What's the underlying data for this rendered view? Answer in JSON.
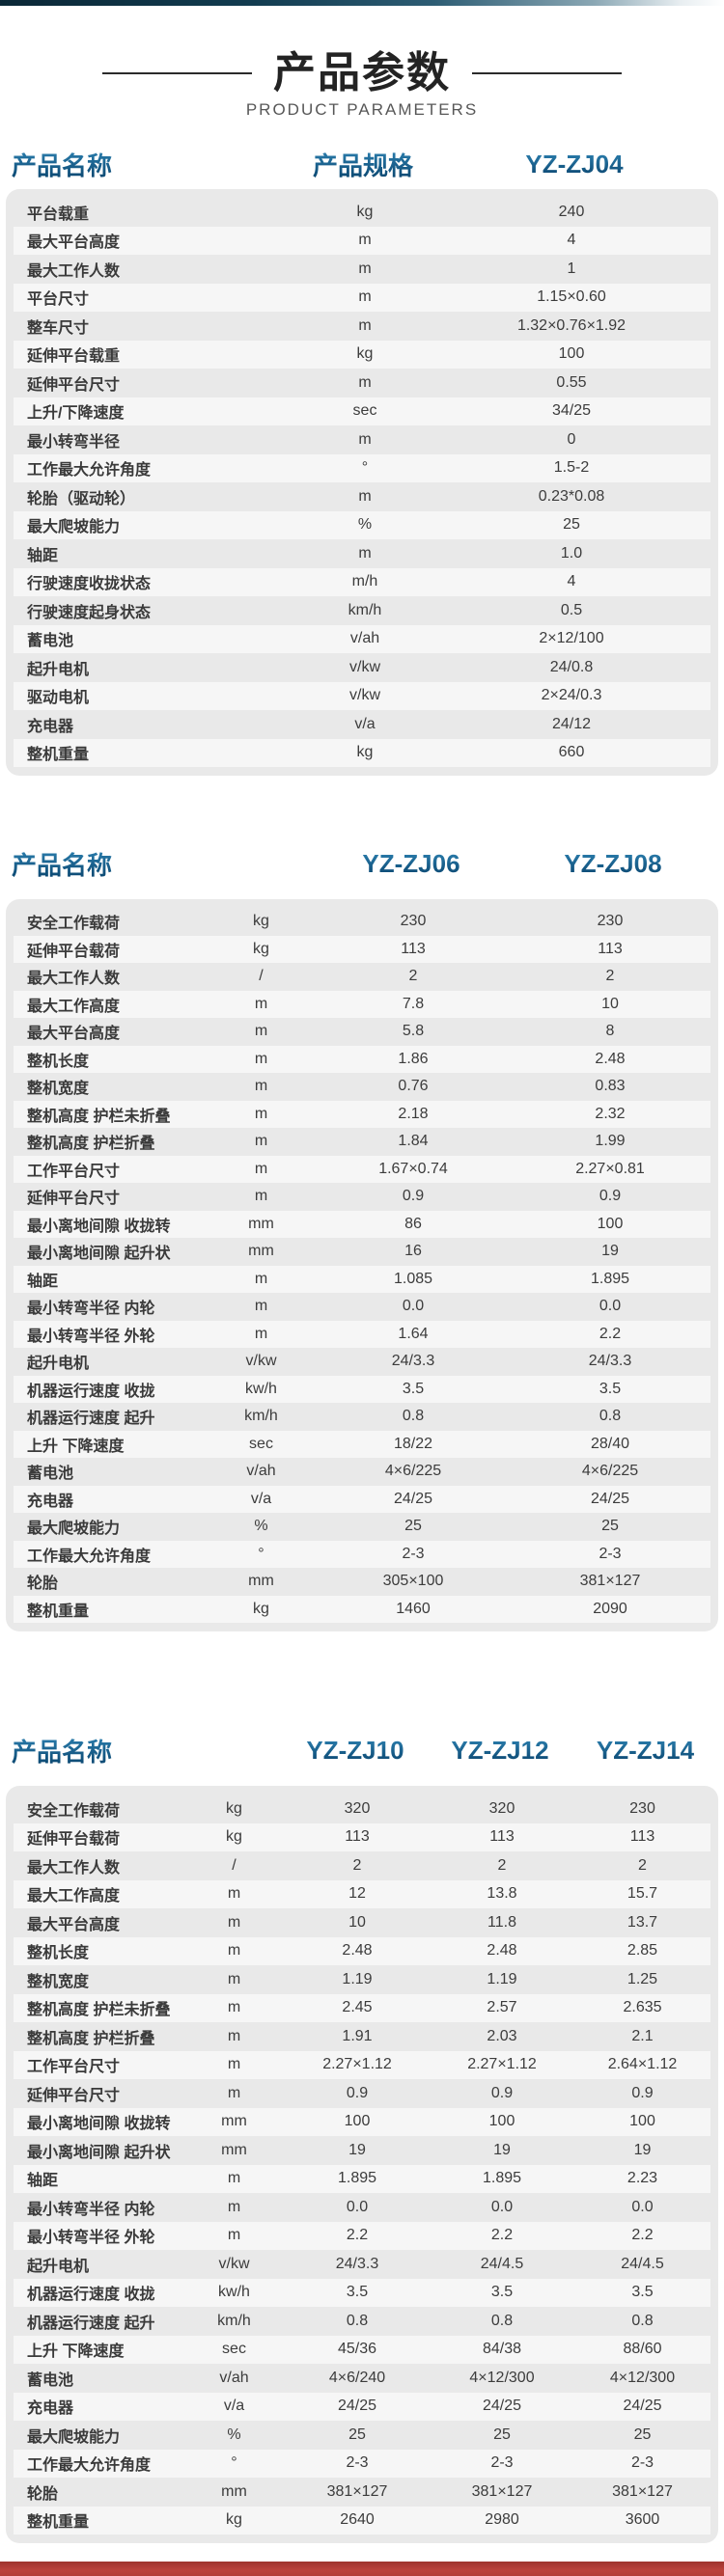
{
  "page": {
    "title": "产品参数",
    "subtitle": "PRODUCT PARAMETERS"
  },
  "colors": {
    "accent_blue": "#135e93",
    "title_dark": "#232323",
    "card_bg": "#e9e9e9",
    "stripe_bg": "#f6f6f6",
    "row_text": "#3c3c3c",
    "bottom_bar_red": "#b43d37",
    "top_bar_navy": "#0a2736"
  },
  "tables": [
    {
      "name_header": "产品名称",
      "spec_header": "产品规格",
      "models": [
        "YZ-ZJ04"
      ],
      "rows": [
        {
          "label": "平台载重",
          "unit": "kg",
          "values": [
            "240"
          ]
        },
        {
          "label": "最大平台高度",
          "unit": "m",
          "values": [
            "4"
          ]
        },
        {
          "label": "最大工作人数",
          "unit": "m",
          "values": [
            "1"
          ]
        },
        {
          "label": "平台尺寸",
          "unit": "m",
          "values": [
            "1.15×0.60"
          ]
        },
        {
          "label": "整车尺寸",
          "unit": "m",
          "values": [
            "1.32×0.76×1.92"
          ]
        },
        {
          "label": "延伸平台载重",
          "unit": "kg",
          "values": [
            "100"
          ]
        },
        {
          "label": "延伸平台尺寸",
          "unit": "m",
          "values": [
            "0.55"
          ]
        },
        {
          "label": "上升/下降速度",
          "unit": "sec",
          "values": [
            "34/25"
          ]
        },
        {
          "label": "最小转弯半径",
          "unit": "m",
          "values": [
            "0"
          ]
        },
        {
          "label": "工作最大允许角度",
          "unit": "°",
          "values": [
            "1.5-2"
          ]
        },
        {
          "label": "轮胎（驱动轮）",
          "unit": "m",
          "values": [
            "0.23*0.08"
          ]
        },
        {
          "label": "最大爬坡能力",
          "unit": "%",
          "values": [
            "25"
          ]
        },
        {
          "label": "轴距",
          "unit": "m",
          "values": [
            "1.0"
          ]
        },
        {
          "label": "行驶速度收拢状态",
          "unit": "m/h",
          "values": [
            "4"
          ]
        },
        {
          "label": "行驶速度起身状态",
          "unit": "km/h",
          "values": [
            "0.5"
          ]
        },
        {
          "label": "蓄电池",
          "unit": "v/ah",
          "values": [
            "2×12/100"
          ]
        },
        {
          "label": "起升电机",
          "unit": "v/kw",
          "values": [
            "24/0.8"
          ]
        },
        {
          "label": "驱动电机",
          "unit": "v/kw",
          "values": [
            "2×24/0.3"
          ]
        },
        {
          "label": "充电器",
          "unit": "v/a",
          "values": [
            "24/12"
          ]
        },
        {
          "label": "整机重量",
          "unit": "kg",
          "values": [
            "660"
          ]
        }
      ]
    },
    {
      "name_header": "产品名称",
      "spec_header": "",
      "models": [
        "YZ-ZJ06",
        "YZ-ZJ08"
      ],
      "rows": [
        {
          "label": "安全工作载荷",
          "unit": "kg",
          "values": [
            "230",
            "230"
          ]
        },
        {
          "label": "延伸平台载荷",
          "unit": "kg",
          "values": [
            "113",
            "113"
          ]
        },
        {
          "label": "最大工作人数",
          "unit": "/",
          "values": [
            "2",
            "2"
          ]
        },
        {
          "label": "最大工作高度",
          "unit": "m",
          "values": [
            "7.8",
            "10"
          ]
        },
        {
          "label": "最大平台高度",
          "unit": "m",
          "values": [
            "5.8",
            "8"
          ]
        },
        {
          "label": "整机长度",
          "unit": "m",
          "values": [
            "1.86",
            "2.48"
          ]
        },
        {
          "label": "整机宽度",
          "unit": "m",
          "values": [
            "0.76",
            "0.83"
          ]
        },
        {
          "label": "整机高度 护栏未折叠",
          "unit": "m",
          "values": [
            "2.18",
            "2.32"
          ]
        },
        {
          "label": "整机高度 护栏折叠",
          "unit": "m",
          "values": [
            "1.84",
            "1.99"
          ]
        },
        {
          "label": "工作平台尺寸",
          "unit": "m",
          "values": [
            "1.67×0.74",
            "2.27×0.81"
          ]
        },
        {
          "label": "延伸平台尺寸",
          "unit": "m",
          "values": [
            "0.9",
            "0.9"
          ]
        },
        {
          "label": "最小离地间隙 收拢转",
          "unit": "mm",
          "values": [
            "86",
            "100"
          ]
        },
        {
          "label": "最小离地间隙 起升状",
          "unit": "mm",
          "values": [
            "16",
            "19"
          ]
        },
        {
          "label": "轴距",
          "unit": "m",
          "values": [
            "1.085",
            "1.895"
          ]
        },
        {
          "label": "最小转弯半径 内轮",
          "unit": "m",
          "values": [
            "0.0",
            "0.0"
          ]
        },
        {
          "label": "最小转弯半径 外轮",
          "unit": "m",
          "values": [
            "1.64",
            "2.2"
          ]
        },
        {
          "label": "起升电机",
          "unit": "v/kw",
          "values": [
            "24/3.3",
            "24/3.3"
          ]
        },
        {
          "label": "机器运行速度 收拢",
          "unit": "kw/h",
          "values": [
            "3.5",
            "3.5"
          ]
        },
        {
          "label": "机器运行速度 起升",
          "unit": "km/h",
          "values": [
            "0.8",
            "0.8"
          ]
        },
        {
          "label": "上升 下降速度",
          "unit": "sec",
          "values": [
            "18/22",
            "28/40"
          ]
        },
        {
          "label": "蓄电池",
          "unit": "v/ah",
          "values": [
            "4×6/225",
            "4×6/225"
          ]
        },
        {
          "label": "充电器",
          "unit": "v/a",
          "values": [
            "24/25",
            "24/25"
          ]
        },
        {
          "label": "最大爬坡能力",
          "unit": "%",
          "values": [
            "25",
            "25"
          ]
        },
        {
          "label": "工作最大允许角度",
          "unit": "°",
          "values": [
            "2-3",
            "2-3"
          ]
        },
        {
          "label": "轮胎",
          "unit": "mm",
          "values": [
            "305×100",
            "381×127"
          ]
        },
        {
          "label": "整机重量",
          "unit": "kg",
          "values": [
            "1460",
            "2090"
          ]
        }
      ]
    },
    {
      "name_header": "产品名称",
      "spec_header": "",
      "models": [
        "YZ-ZJ10",
        "YZ-ZJ12",
        "YZ-ZJ14"
      ],
      "rows": [
        {
          "label": "安全工作载荷",
          "unit": "kg",
          "values": [
            "320",
            "320",
            "230"
          ]
        },
        {
          "label": "延伸平台载荷",
          "unit": "kg",
          "values": [
            "113",
            "113",
            "113"
          ]
        },
        {
          "label": "最大工作人数",
          "unit": "/",
          "values": [
            "2",
            "2",
            "2"
          ]
        },
        {
          "label": "最大工作高度",
          "unit": "m",
          "values": [
            "12",
            "13.8",
            "15.7"
          ]
        },
        {
          "label": "最大平台高度",
          "unit": "m",
          "values": [
            "10",
            "11.8",
            "13.7"
          ]
        },
        {
          "label": "整机长度",
          "unit": "m",
          "values": [
            "2.48",
            "2.48",
            "2.85"
          ]
        },
        {
          "label": "整机宽度",
          "unit": "m",
          "values": [
            "1.19",
            "1.19",
            "1.25"
          ]
        },
        {
          "label": "整机高度 护栏未折叠",
          "unit": "m",
          "values": [
            "2.45",
            "2.57",
            "2.635"
          ]
        },
        {
          "label": "整机高度 护栏折叠",
          "unit": "m",
          "values": [
            "1.91",
            "2.03",
            "2.1"
          ]
        },
        {
          "label": "工作平台尺寸",
          "unit": "m",
          "values": [
            "2.27×1.12",
            "2.27×1.12",
            "2.64×1.12"
          ]
        },
        {
          "label": "延伸平台尺寸",
          "unit": "m",
          "values": [
            "0.9",
            "0.9",
            "0.9"
          ]
        },
        {
          "label": "最小离地间隙 收拢转",
          "unit": "mm",
          "values": [
            "100",
            "100",
            "100"
          ]
        },
        {
          "label": "最小离地间隙 起升状",
          "unit": "mm",
          "values": [
            "19",
            "19",
            "19"
          ]
        },
        {
          "label": "轴距",
          "unit": "m",
          "values": [
            "1.895",
            "1.895",
            "2.23"
          ]
        },
        {
          "label": "最小转弯半径 内轮",
          "unit": "m",
          "values": [
            "0.0",
            "0.0",
            "0.0"
          ]
        },
        {
          "label": "最小转弯半径 外轮",
          "unit": "m",
          "values": [
            "2.2",
            "2.2",
            "2.2"
          ]
        },
        {
          "label": "起升电机",
          "unit": "v/kw",
          "values": [
            "24/3.3",
            "24/4.5",
            "24/4.5"
          ]
        },
        {
          "label": "机器运行速度 收拢",
          "unit": "kw/h",
          "values": [
            "3.5",
            "3.5",
            "3.5"
          ]
        },
        {
          "label": "机器运行速度 起升",
          "unit": "km/h",
          "values": [
            "0.8",
            "0.8",
            "0.8"
          ]
        },
        {
          "label": "上升 下降速度",
          "unit": "sec",
          "values": [
            "45/36",
            "84/38",
            "88/60"
          ]
        },
        {
          "label": "蓄电池",
          "unit": "v/ah",
          "values": [
            "4×6/240",
            "4×12/300",
            "4×12/300"
          ]
        },
        {
          "label": "充电器",
          "unit": "v/a",
          "values": [
            "24/25",
            "24/25",
            "24/25"
          ]
        },
        {
          "label": "最大爬坡能力",
          "unit": "%",
          "values": [
            "25",
            "25",
            "25"
          ]
        },
        {
          "label": "工作最大允许角度",
          "unit": "°",
          "values": [
            "2-3",
            "2-3",
            "2-3"
          ]
        },
        {
          "label": "轮胎",
          "unit": "mm",
          "values": [
            "381×127",
            "381×127",
            "381×127"
          ]
        },
        {
          "label": "整机重量",
          "unit": "kg",
          "values": [
            "2640",
            "2980",
            "3600"
          ]
        }
      ]
    }
  ]
}
